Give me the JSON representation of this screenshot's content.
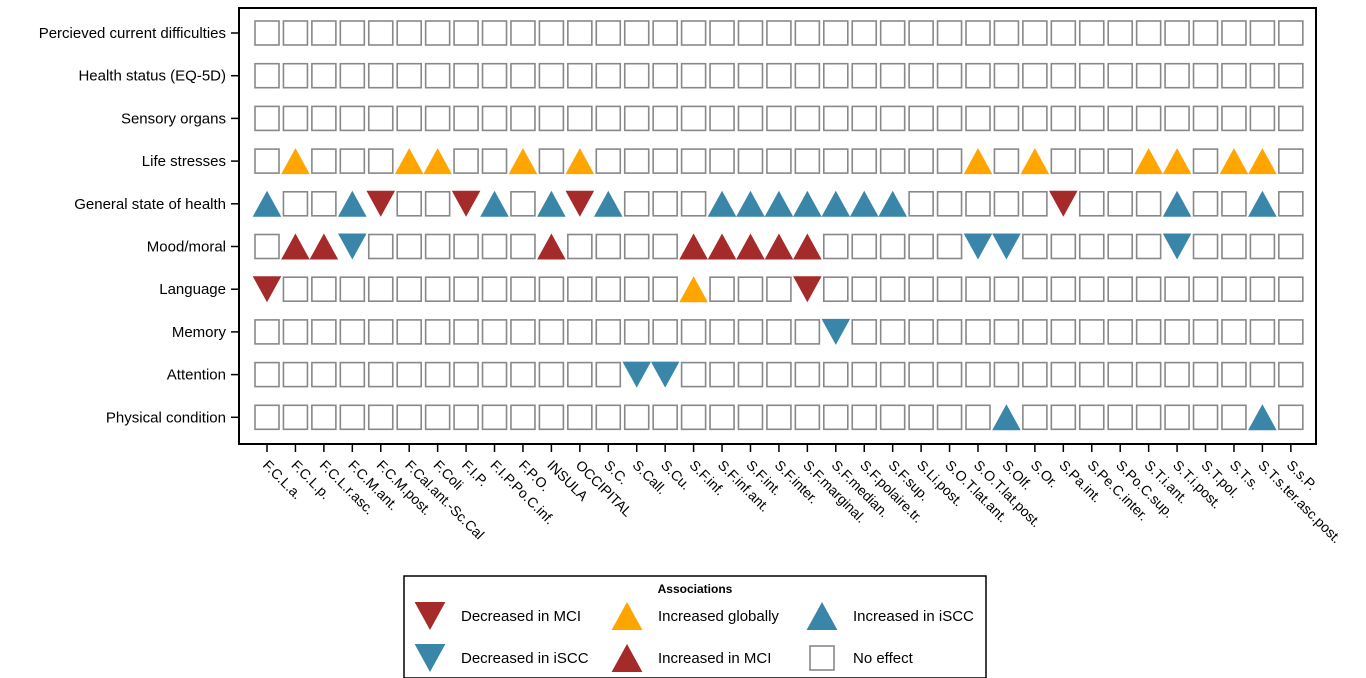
{
  "chart_data": {
    "type": "heatmap",
    "title": "",
    "xlabel": "",
    "ylabel": "",
    "rows": [
      "Percieved current difficulties",
      "Health status (EQ-5D)",
      "Sensory organs",
      "Life stresses",
      "General state of health",
      "Mood/moral",
      "Language",
      "Memory",
      "Attention",
      "Physical condition"
    ],
    "columns": [
      "F.C.L.a.",
      "F.C.L.p.",
      "F.C.L.r.asc.",
      "F.C.M.ant.",
      "F.C.M.post.",
      "F.Cal.ant.-Sc.Cal",
      "F.Coli",
      "F.I.P.",
      "F.I.P.Po.C.inf.",
      "F.P.O.",
      "INSULA",
      "OCCIPITAL",
      "S.C.",
      "S.Call.",
      "S.Cu.",
      "S.F.inf.",
      "S.F.inf.ant.",
      "S.F.int.",
      "S.F.inter.",
      "S.F.marginal.",
      "S.F.median.",
      "S.F.polaire.tr.",
      "S.F.sup.",
      "S.Li.post.",
      "S.O.T.lat.ant.",
      "S.O.T.lat.post.",
      "S.Olf.",
      "S.Or.",
      "S.Pa.int.",
      "S.Pe.C.inter.",
      "S.Po.C.sup.",
      "S.T.i.ant.",
      "S.T.i.post.",
      "S.T.pol.",
      "S.T.s.",
      "S.T.s.ter.asc.post.",
      "S.s.P."
    ],
    "associations": {
      "DM": "Decreased in MCI",
      "IG": "Increased globally",
      "II": "Increased in iSCC",
      "DI": "Decreased in iSCC",
      "IM": "Increased in MCI",
      "NE": "No effect"
    },
    "cells": [
      {
        "row": 3,
        "col": 1,
        "value": "IG"
      },
      {
        "row": 3,
        "col": 5,
        "value": "IG"
      },
      {
        "row": 3,
        "col": 6,
        "value": "IG"
      },
      {
        "row": 3,
        "col": 9,
        "value": "IG"
      },
      {
        "row": 3,
        "col": 11,
        "value": "IG"
      },
      {
        "row": 3,
        "col": 25,
        "value": "IG"
      },
      {
        "row": 3,
        "col": 27,
        "value": "IG"
      },
      {
        "row": 3,
        "col": 31,
        "value": "IG"
      },
      {
        "row": 3,
        "col": 32,
        "value": "IG"
      },
      {
        "row": 3,
        "col": 34,
        "value": "IG"
      },
      {
        "row": 3,
        "col": 35,
        "value": "IG"
      },
      {
        "row": 4,
        "col": 0,
        "value": "II"
      },
      {
        "row": 4,
        "col": 3,
        "value": "II"
      },
      {
        "row": 4,
        "col": 4,
        "value": "DM"
      },
      {
        "row": 4,
        "col": 7,
        "value": "DM"
      },
      {
        "row": 4,
        "col": 8,
        "value": "II"
      },
      {
        "row": 4,
        "col": 10,
        "value": "II"
      },
      {
        "row": 4,
        "col": 11,
        "value": "DM"
      },
      {
        "row": 4,
        "col": 12,
        "value": "II"
      },
      {
        "row": 4,
        "col": 16,
        "value": "II"
      },
      {
        "row": 4,
        "col": 17,
        "value": "II"
      },
      {
        "row": 4,
        "col": 18,
        "value": "II"
      },
      {
        "row": 4,
        "col": 19,
        "value": "II"
      },
      {
        "row": 4,
        "col": 20,
        "value": "II"
      },
      {
        "row": 4,
        "col": 21,
        "value": "II"
      },
      {
        "row": 4,
        "col": 22,
        "value": "II"
      },
      {
        "row": 4,
        "col": 28,
        "value": "DM"
      },
      {
        "row": 4,
        "col": 32,
        "value": "II"
      },
      {
        "row": 4,
        "col": 35,
        "value": "II"
      },
      {
        "row": 5,
        "col": 1,
        "value": "IM"
      },
      {
        "row": 5,
        "col": 2,
        "value": "IM"
      },
      {
        "row": 5,
        "col": 3,
        "value": "DI"
      },
      {
        "row": 5,
        "col": 10,
        "value": "IM"
      },
      {
        "row": 5,
        "col": 15,
        "value": "IM"
      },
      {
        "row": 5,
        "col": 16,
        "value": "IM"
      },
      {
        "row": 5,
        "col": 17,
        "value": "IM"
      },
      {
        "row": 5,
        "col": 18,
        "value": "IM"
      },
      {
        "row": 5,
        "col": 19,
        "value": "IM"
      },
      {
        "row": 5,
        "col": 25,
        "value": "DI"
      },
      {
        "row": 5,
        "col": 26,
        "value": "DI"
      },
      {
        "row": 5,
        "col": 32,
        "value": "DI"
      },
      {
        "row": 6,
        "col": 0,
        "value": "DM"
      },
      {
        "row": 6,
        "col": 15,
        "value": "IG"
      },
      {
        "row": 6,
        "col": 19,
        "value": "DM"
      },
      {
        "row": 7,
        "col": 20,
        "value": "DI"
      },
      {
        "row": 8,
        "col": 13,
        "value": "DI"
      },
      {
        "row": 8,
        "col": 14,
        "value": "DI"
      },
      {
        "row": 9,
        "col": 26,
        "value": "II"
      },
      {
        "row": 9,
        "col": 35,
        "value": "II"
      }
    ],
    "legend": {
      "title": "Associations",
      "placement": "bottom-center",
      "entries": [
        {
          "key": "DM",
          "label": "Decreased in MCI",
          "marker": "triangle-down",
          "color": "#a52a2a"
        },
        {
          "key": "IG",
          "label": "Increased globally",
          "marker": "triangle-up",
          "color": "#ffa500"
        },
        {
          "key": "II",
          "label": "Increased in iSCC",
          "marker": "triangle-up",
          "color": "#3a86a8"
        },
        {
          "key": "DI",
          "label": "Decreased in iSCC",
          "marker": "triangle-down",
          "color": "#3a86a8"
        },
        {
          "key": "IM",
          "label": "Increased in MCI",
          "marker": "triangle-up",
          "color": "#a52a2a"
        },
        {
          "key": "NE",
          "label": "No effect",
          "marker": "square",
          "color": "#888888"
        }
      ]
    },
    "colors": {
      "red": "#a52a2a",
      "orange": "#ffa500",
      "blue": "#3a86a8",
      "empty_box": "#888888"
    }
  }
}
